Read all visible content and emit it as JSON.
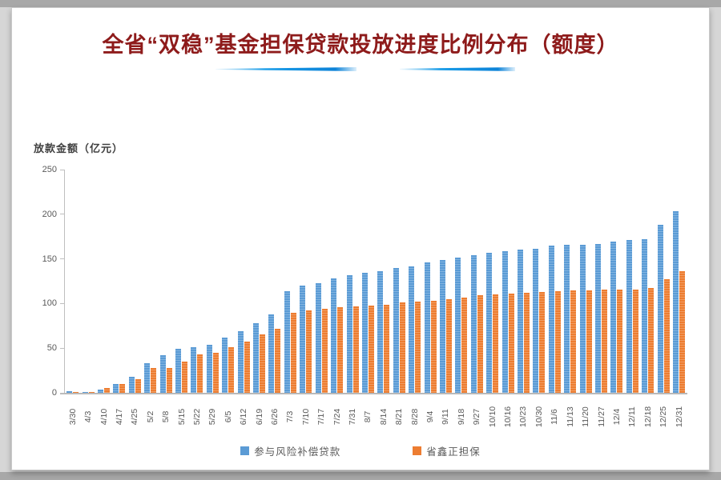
{
  "title": "全省“双稳”基金担保贷款投放进度比例分布（额度）",
  "chart_data": {
    "type": "bar",
    "title": "全省“双稳”基金担保贷款投放进度比例分布（额度）",
    "ylabel": "放款金额（亿元）",
    "xlabel": "",
    "ylim": [
      0,
      250
    ],
    "yticks": [
      0,
      50,
      100,
      150,
      200,
      250
    ],
    "grid": false,
    "legend_position": "bottom",
    "categories": [
      "3/30",
      "4/3",
      "4/10",
      "4/17",
      "4/25",
      "5/2",
      "5/8",
      "5/15",
      "5/22",
      "5/29",
      "6/5",
      "6/12",
      "6/19",
      "6/26",
      "7/3",
      "7/10",
      "7/17",
      "7/24",
      "7/31",
      "8/7",
      "8/14",
      "8/21",
      "8/28",
      "9/4",
      "9/11",
      "9/18",
      "9/27",
      "10/10",
      "10/16",
      "10/23",
      "10/30",
      "11/6",
      "11/13",
      "11/20",
      "11/27",
      "12/4",
      "12/11",
      "12/18",
      "12/25",
      "12/31"
    ],
    "series": [
      {
        "name": "参与风险补偿贷款",
        "color": "#5b9bd5",
        "values": [
          2,
          1,
          4,
          10,
          18,
          33,
          42,
          49,
          51,
          54,
          62,
          69,
          78,
          88,
          114,
          120,
          123,
          128,
          132,
          134,
          136,
          140,
          142,
          146,
          149,
          151,
          154,
          157,
          159,
          160,
          161,
          165,
          166,
          166,
          167,
          169,
          171,
          172,
          188,
          203
        ]
      },
      {
        "name": "省鑫正担保",
        "color": "#ed7d31",
        "values": [
          1,
          1,
          5,
          10,
          15,
          28,
          28,
          35,
          43,
          45,
          51,
          57,
          65,
          72,
          90,
          92,
          94,
          96,
          97,
          98,
          99,
          101,
          102,
          103,
          105,
          107,
          109,
          110,
          111,
          112,
          113,
          114,
          115,
          115,
          116,
          116,
          116,
          117,
          127,
          136
        ]
      }
    ]
  },
  "colors": {
    "title_text": "#8e1b1b",
    "underline_blue": "#1b9de8",
    "axis_line": "#bfbfbf",
    "tick_text": "#595959"
  }
}
